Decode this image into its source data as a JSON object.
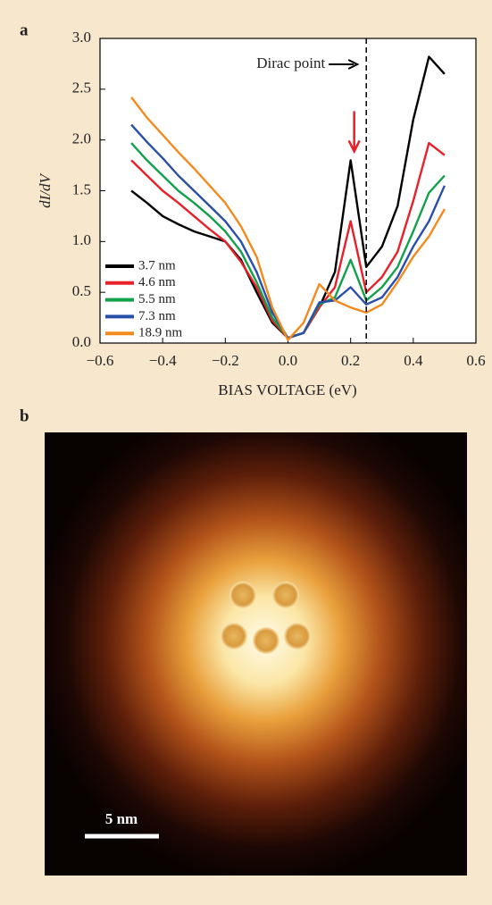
{
  "chart_data": {
    "type": "line",
    "panel_label": "a",
    "xlabel": "BIAS VOLTAGE (eV)",
    "ylabel": "dI/dV",
    "xlim": [
      -0.6,
      0.6
    ],
    "ylim": [
      0,
      3
    ],
    "xticks": [
      {
        "value": -0.6,
        "label": "−0.6"
      },
      {
        "value": -0.4,
        "label": "−0.4"
      },
      {
        "value": -0.2,
        "label": "−0.2"
      },
      {
        "value": 0,
        "label": "0.0"
      },
      0.2,
      0.4,
      0.6
    ],
    "yticks": [
      {
        "value": 0,
        "label": "0.0"
      },
      0.5,
      {
        "value": 1,
        "label": "1.0"
      },
      1.5,
      {
        "value": 2,
        "label": "2.0"
      },
      2.5,
      {
        "value": 3,
        "label": "3.0"
      }
    ],
    "legend": "lower left",
    "annotations": [
      {
        "text": "Dirac point",
        "x": 0.25
      }
    ],
    "x": [
      -0.5,
      -0.45,
      -0.4,
      -0.35,
      -0.3,
      -0.25,
      -0.2,
      -0.15,
      -0.1,
      -0.05,
      0,
      0.05,
      0.1,
      0.15,
      0.2,
      0.25,
      0.3,
      0.35,
      0.4,
      0.45,
      0.5
    ],
    "series": [
      {
        "name": "3.7 nm",
        "color": "#000000",
        "values": [
          1.5,
          1.38,
          1.25,
          1.17,
          1.1,
          1.05,
          1.0,
          0.82,
          0.5,
          0.2,
          0.05,
          0.1,
          0.35,
          0.7,
          1.8,
          0.75,
          0.95,
          1.35,
          2.2,
          2.82,
          2.65
        ]
      },
      {
        "name": "4.6 nm",
        "color": "#e8202a",
        "values": [
          1.8,
          1.65,
          1.5,
          1.38,
          1.25,
          1.12,
          1.0,
          0.8,
          0.55,
          0.22,
          0.05,
          0.1,
          0.35,
          0.55,
          1.2,
          0.5,
          0.65,
          0.9,
          1.4,
          1.97,
          1.85
        ]
      },
      {
        "name": "5.5 nm",
        "color": "#12a04a",
        "values": [
          1.97,
          1.8,
          1.65,
          1.5,
          1.38,
          1.25,
          1.1,
          0.9,
          0.6,
          0.25,
          0.05,
          0.1,
          0.38,
          0.45,
          0.82,
          0.42,
          0.55,
          0.75,
          1.1,
          1.48,
          1.65
        ]
      },
      {
        "name": "7.3 nm",
        "color": "#2a4fa8",
        "values": [
          2.15,
          1.98,
          1.82,
          1.65,
          1.5,
          1.35,
          1.2,
          1.0,
          0.7,
          0.3,
          0.05,
          0.1,
          0.4,
          0.42,
          0.55,
          0.38,
          0.45,
          0.65,
          0.95,
          1.2,
          1.55
        ]
      },
      {
        "name": "18.9 nm",
        "color": "#f28a1e",
        "values": [
          2.42,
          2.22,
          2.05,
          1.88,
          1.72,
          1.55,
          1.38,
          1.15,
          0.85,
          0.35,
          0.03,
          0.2,
          0.58,
          0.42,
          0.35,
          0.3,
          0.38,
          0.6,
          0.85,
          1.05,
          1.32
        ]
      }
    ]
  },
  "image_panel": {
    "label": "b",
    "scale_bar": "5 nm"
  }
}
